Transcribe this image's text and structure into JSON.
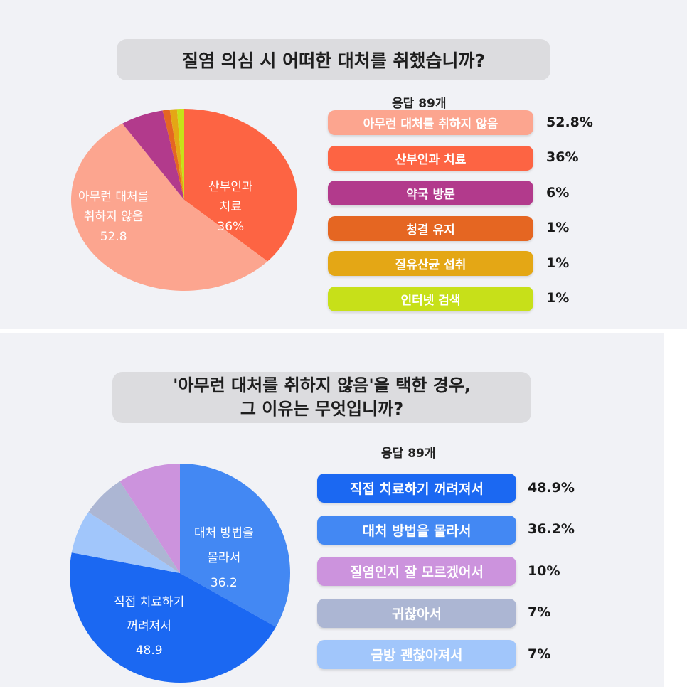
{
  "section1": {
    "question": "질염 의심 시 어떠한 대처를 취했습니까?",
    "responses": "응답 89개",
    "pie_labels": [
      [
        "아무런 대처를",
        "취하지 않음",
        "52.8"
      ],
      [
        "산부인과",
        "치료",
        "36%"
      ]
    ],
    "legend": [
      {
        "label": "아무런 대처를 취하지 않음",
        "value": "52.8%",
        "color": "#fca58f"
      },
      {
        "label": "산부인과 치료",
        "value": "36%",
        "color": "#fd6443"
      },
      {
        "label": "약국 방문",
        "value": "6%",
        "color": "#b23a8c"
      },
      {
        "label": "청결 유지",
        "value": "1%",
        "color": "#e56622"
      },
      {
        "label": "질유산균 섭취",
        "value": "1%",
        "color": "#e4a715"
      },
      {
        "label": "인터넷 검색",
        "value": "1%",
        "color": "#c7e019"
      }
    ]
  },
  "section2": {
    "question_line1": "'아무런 대처를 취하지 않음'을 택한 경우,",
    "question_line2": "그 이유는 무엇입니까?",
    "responses": "응답 89개",
    "pie_labels": [
      [
        "대처 방법을",
        "몰라서",
        "36.2"
      ],
      [
        "직접 치료하기",
        "꺼려져서",
        "48.9"
      ]
    ],
    "legend": [
      {
        "label": "직접 치료하기 꺼려져서",
        "value": "48.9%",
        "color": "#1b68f2"
      },
      {
        "label": "대처 방법을 몰라서",
        "value": "36.2%",
        "color": "#4388f3"
      },
      {
        "label": "질염인지 잘 모르겠어서",
        "value": "10%",
        "color": "#cc93dd"
      },
      {
        "label": "귀찮아서",
        "value": "7%",
        "color": "#acb6d3"
      },
      {
        "label": "금방 괜찮아져서",
        "value": "7%",
        "color": "#a1c6fb"
      }
    ]
  },
  "chart_data": [
    {
      "type": "pie",
      "title": "질염 의심 시 어떠한 대처를 취했습니까?",
      "categories": [
        "아무런 대처를 취하지 않음",
        "산부인과 치료",
        "약국 방문",
        "청결 유지",
        "질유산균 섭취",
        "인터넷 검색"
      ],
      "values": [
        52.8,
        36,
        6,
        1,
        1,
        1
      ],
      "colors": [
        "#fca58f",
        "#fd6443",
        "#b23a8c",
        "#e56622",
        "#e4a715",
        "#c7e019"
      ],
      "legend": "right"
    },
    {
      "type": "pie",
      "title": "'아무런 대처를 취하지 않음'을 택한 경우, 그 이유는 무엇입니까?",
      "categories": [
        "직접 치료하기 꺼려져서",
        "대처 방법을 몰라서",
        "질염인지 잘 모르겠어서",
        "귀찮아서",
        "금방 괜찮아져서"
      ],
      "values": [
        48.9,
        36.2,
        10,
        7,
        7
      ],
      "colors": [
        "#1b68f2",
        "#4388f3",
        "#cc93dd",
        "#acb6d3",
        "#a1c6fb"
      ],
      "legend": "right"
    }
  ]
}
